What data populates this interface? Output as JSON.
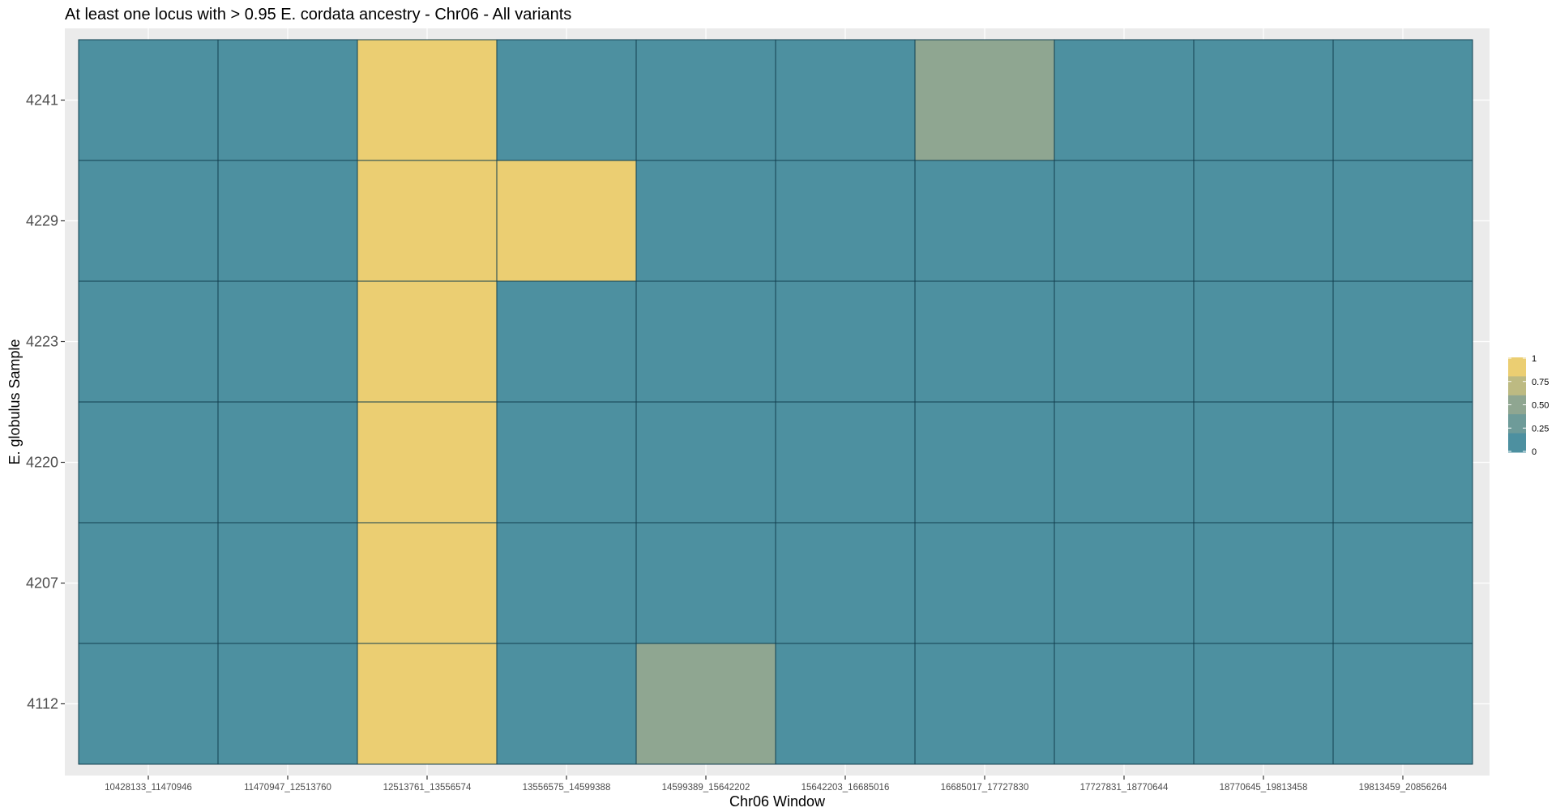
{
  "chart_data": {
    "type": "heatmap",
    "title": "At least one locus with > 0.95 E. cordata ancestry - Chr06 - All variants",
    "xlabel": "Chr06 Window",
    "ylabel": "E. globulus Sample",
    "x_categories": [
      "10428133_11470946",
      "11470947_12513760",
      "12513761_13556574",
      "13556575_14599388",
      "14599389_15642202",
      "15642203_16685016",
      "16685017_17727830",
      "17727831_18770644",
      "18770645_19813458",
      "19813459_20856264"
    ],
    "y_categories": [
      "4241",
      "4229",
      "4223",
      "4220",
      "4207",
      "4112"
    ],
    "values": [
      [
        0,
        0,
        1,
        0,
        0,
        0,
        0.5,
        0,
        0,
        0
      ],
      [
        0,
        0,
        1,
        1,
        0,
        0,
        0,
        0,
        0,
        0
      ],
      [
        0,
        0,
        1,
        0,
        0,
        0,
        0,
        0,
        0,
        0
      ],
      [
        0,
        0,
        1,
        0,
        0,
        0,
        0,
        0,
        0,
        0
      ],
      [
        0,
        0,
        1,
        0,
        0,
        0,
        0,
        0,
        0,
        0
      ],
      [
        0,
        0,
        1,
        0,
        0.5,
        0,
        0,
        0,
        0,
        0
      ]
    ],
    "color_scale": {
      "low": "#4d90a0",
      "mid": "#8fa691",
      "high": "#ebce72",
      "range": [
        0,
        1
      ]
    },
    "legend": {
      "position": "right",
      "labels": [
        "1",
        "0.75",
        "0.50",
        "0.25",
        "0"
      ]
    },
    "panel_background": "#ebebeb",
    "grid": true
  }
}
